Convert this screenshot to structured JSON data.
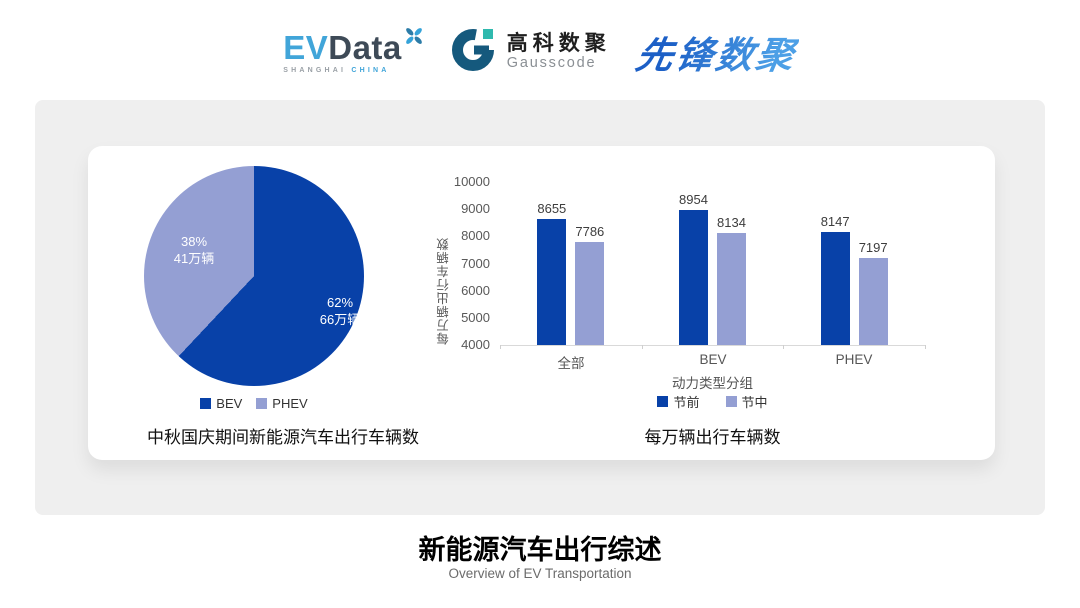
{
  "header": {
    "evdata": {
      "ev": "EV",
      "data": "Data",
      "sub_left": "SHANGHAI",
      "sub_right": "CHINA"
    },
    "gausscode": {
      "cn": "高科数聚",
      "en": "Gausscode"
    },
    "xianfeng": {
      "text": "先锋数聚"
    }
  },
  "colors": {
    "series_dark_blue": "#0841A8",
    "series_light_blue": "#949FD3",
    "evdata_cyan": "#41A5D9",
    "evdata_dark": "#3E4A57",
    "gausscode_dark": "#15597D",
    "gausscode_teal": "#2FB9AE",
    "xianfeng_blue": "#2E7CD0"
  },
  "chart_data": [
    {
      "type": "pie",
      "title": "中秋国庆期间新能源汽车出行车辆数",
      "start_angle_deg": 0,
      "slices": [
        {
          "label": "BEV",
          "percent": 62,
          "percent_label": "62%",
          "value_label": "66万辆",
          "color": "#0841A8"
        },
        {
          "label": "PHEV",
          "percent": 38,
          "percent_label": "38%",
          "value_label": "41万辆",
          "color": "#949FD3"
        }
      ],
      "legend_position": "bottom"
    },
    {
      "type": "bar",
      "title": "每万辆出行车辆数",
      "categories": [
        "全部",
        "BEV",
        "PHEV"
      ],
      "series": [
        {
          "name": "节前",
          "values": [
            8655,
            8954,
            8147
          ],
          "color": "#0841A8"
        },
        {
          "name": "节中",
          "values": [
            7786,
            8134,
            7197
          ],
          "color": "#949FD3"
        }
      ],
      "xlabel": "动力类型分组",
      "ylabel": "每万辆出行车辆数",
      "ylim": [
        4000,
        10000
      ],
      "ytick_step": 1000,
      "grid": false,
      "legend_position": "bottom"
    }
  ],
  "footer": {
    "title": "新能源汽车出行综述",
    "subtitle": "Overview of EV Transportation"
  }
}
